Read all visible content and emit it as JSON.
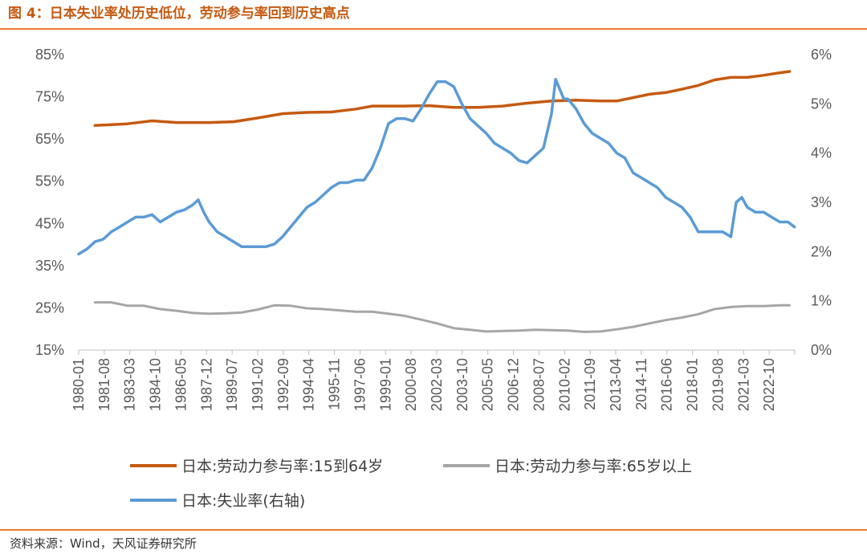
{
  "header": {
    "title": "图 4：日本失业率处历史低位，劳动参与率回到历史高点"
  },
  "footer": {
    "source": "资料来源：Wind，天风证券研究所"
  },
  "colors": {
    "accent": "#ed7d31",
    "lfpr_15_64": "#c55a11",
    "lfpr_65": "#a6a6a6",
    "unemployment": "#5b9bd5"
  },
  "chart_data": {
    "type": "line",
    "y_left": {
      "ticks": [
        "85%",
        "75%",
        "65%",
        "55%",
        "45%",
        "35%",
        "25%",
        "15%"
      ],
      "range": [
        15,
        85
      ]
    },
    "y_right": {
      "ticks": [
        "6%",
        "5%",
        "4%",
        "3%",
        "2%",
        "1%",
        "0%"
      ],
      "range": [
        0,
        6
      ]
    },
    "x_ticks": [
      "1980-01",
      "1981-08",
      "1983-03",
      "1984-10",
      "1986-05",
      "1987-12",
      "1989-07",
      "1991-02",
      "1992-09",
      "1994-04",
      "1995-11",
      "1997-06",
      "1999-01",
      "2000-08",
      "2002-03",
      "2003-10",
      "2005-05",
      "2006-12",
      "2008-07",
      "2010-02",
      "2011-09",
      "2013-04",
      "2014-11",
      "2016-06",
      "2018-01",
      "2019-08",
      "2021-03",
      "2022-10"
    ],
    "x_range": [
      1980.0,
      2023.917
    ],
    "series": [
      {
        "name": "日本:劳动力参与率:15到64岁",
        "axis": "left",
        "x": [
          1981.0,
          1983.0,
          1984.5,
          1986.0,
          1988.0,
          1989.5,
          1991.0,
          1992.5,
          1994.0,
          1995.5,
          1997.0,
          1998.0,
          2000.0,
          2001.5,
          2003.0,
          2004.5,
          2006.0,
          2007.5,
          2009.0,
          2010.5,
          2012.0,
          2013.0,
          2014.0,
          2015.0,
          2016.0,
          2017.0,
          2018.0,
          2019.0,
          2020.0,
          2021.0,
          2022.0,
          2023.0,
          2023.6
        ],
        "y": [
          68.2,
          68.6,
          69.3,
          68.9,
          68.9,
          69.1,
          70.0,
          71.0,
          71.3,
          71.4,
          72.1,
          72.8,
          72.8,
          72.9,
          72.5,
          72.5,
          72.8,
          73.5,
          74.0,
          74.2,
          74.0,
          74.0,
          74.8,
          75.6,
          76.0,
          76.8,
          77.7,
          79.0,
          79.6,
          79.6,
          80.1,
          80.7,
          81.0
        ]
      },
      {
        "name": "日本:劳动力参与率:65岁以上",
        "axis": "left",
        "x": [
          1981.0,
          1982.0,
          1983.0,
          1984.0,
          1985.0,
          1986.0,
          1987.0,
          1988.0,
          1989.0,
          1990.0,
          1991.0,
          1992.0,
          1993.0,
          1994.0,
          1995.0,
          1996.0,
          1997.0,
          1998.0,
          1999.0,
          2000.0,
          2001.0,
          2002.0,
          2003.0,
          2004.0,
          2005.0,
          2006.0,
          2007.0,
          2008.0,
          2009.0,
          2010.0,
          2011.0,
          2012.0,
          2013.0,
          2014.0,
          2015.0,
          2016.0,
          2017.0,
          2018.0,
          2019.0,
          2020.0,
          2021.0,
          2022.0,
          2023.0,
          2023.6
        ],
        "y": [
          26.3,
          26.3,
          25.5,
          25.5,
          24.7,
          24.3,
          23.8,
          23.6,
          23.7,
          23.9,
          24.6,
          25.6,
          25.5,
          24.9,
          24.7,
          24.4,
          24.1,
          24.1,
          23.6,
          23.1,
          22.2,
          21.3,
          20.2,
          19.8,
          19.4,
          19.5,
          19.6,
          19.8,
          19.7,
          19.6,
          19.3,
          19.4,
          19.9,
          20.5,
          21.3,
          22.1,
          22.7,
          23.5,
          24.7,
          25.2,
          25.4,
          25.4,
          25.6,
          25.6
        ]
      },
      {
        "name": "日本:失业率(右轴)",
        "axis": "right",
        "x": [
          1980.0,
          1980.5,
          1981.0,
          1981.5,
          1982.0,
          1982.5,
          1983.0,
          1983.5,
          1984.0,
          1984.5,
          1985.0,
          1985.5,
          1986.0,
          1986.5,
          1987.0,
          1987.33,
          1987.67,
          1988.0,
          1988.5,
          1989.0,
          1989.5,
          1990.0,
          1990.5,
          1991.0,
          1991.5,
          1992.0,
          1992.5,
          1993.0,
          1993.5,
          1994.0,
          1994.5,
          1995.0,
          1995.5,
          1996.0,
          1996.5,
          1997.0,
          1997.5,
          1998.0,
          1998.5,
          1999.0,
          1999.5,
          2000.0,
          2000.5,
          2001.0,
          2001.5,
          2002.0,
          2002.5,
          2003.0,
          2003.5,
          2004.0,
          2004.5,
          2005.0,
          2005.5,
          2006.0,
          2006.5,
          2007.0,
          2007.5,
          2008.0,
          2008.5,
          2009.0,
          2009.25,
          2009.5,
          2009.75,
          2010.0,
          2010.5,
          2011.0,
          2011.5,
          2012.0,
          2012.5,
          2013.0,
          2013.5,
          2014.0,
          2014.5,
          2015.0,
          2015.5,
          2016.0,
          2016.5,
          2017.0,
          2017.5,
          2018.0,
          2018.5,
          2019.0,
          2019.5,
          2020.0,
          2020.33,
          2020.67,
          2021.0,
          2021.5,
          2022.0,
          2022.5,
          2023.0,
          2023.5,
          2023.9
        ],
        "y": [
          1.95,
          2.05,
          2.2,
          2.25,
          2.4,
          2.5,
          2.6,
          2.7,
          2.7,
          2.75,
          2.6,
          2.7,
          2.8,
          2.85,
          2.95,
          3.05,
          2.8,
          2.6,
          2.4,
          2.3,
          2.2,
          2.1,
          2.1,
          2.1,
          2.1,
          2.15,
          2.3,
          2.5,
          2.7,
          2.9,
          3.0,
          3.15,
          3.3,
          3.4,
          3.4,
          3.45,
          3.45,
          3.7,
          4.1,
          4.6,
          4.7,
          4.7,
          4.65,
          4.9,
          5.2,
          5.45,
          5.45,
          5.35,
          5.0,
          4.7,
          4.55,
          4.4,
          4.2,
          4.1,
          4.0,
          3.85,
          3.8,
          3.95,
          4.1,
          4.8,
          5.5,
          5.3,
          5.1,
          5.1,
          4.9,
          4.6,
          4.4,
          4.3,
          4.2,
          4.0,
          3.9,
          3.6,
          3.5,
          3.4,
          3.3,
          3.1,
          3.0,
          2.9,
          2.7,
          2.4,
          2.4,
          2.4,
          2.4,
          2.3,
          3.0,
          3.1,
          2.9,
          2.8,
          2.8,
          2.7,
          2.6,
          2.6,
          2.5
        ]
      }
    ],
    "legend": {
      "placement": "bottom"
    },
    "grid": false
  }
}
